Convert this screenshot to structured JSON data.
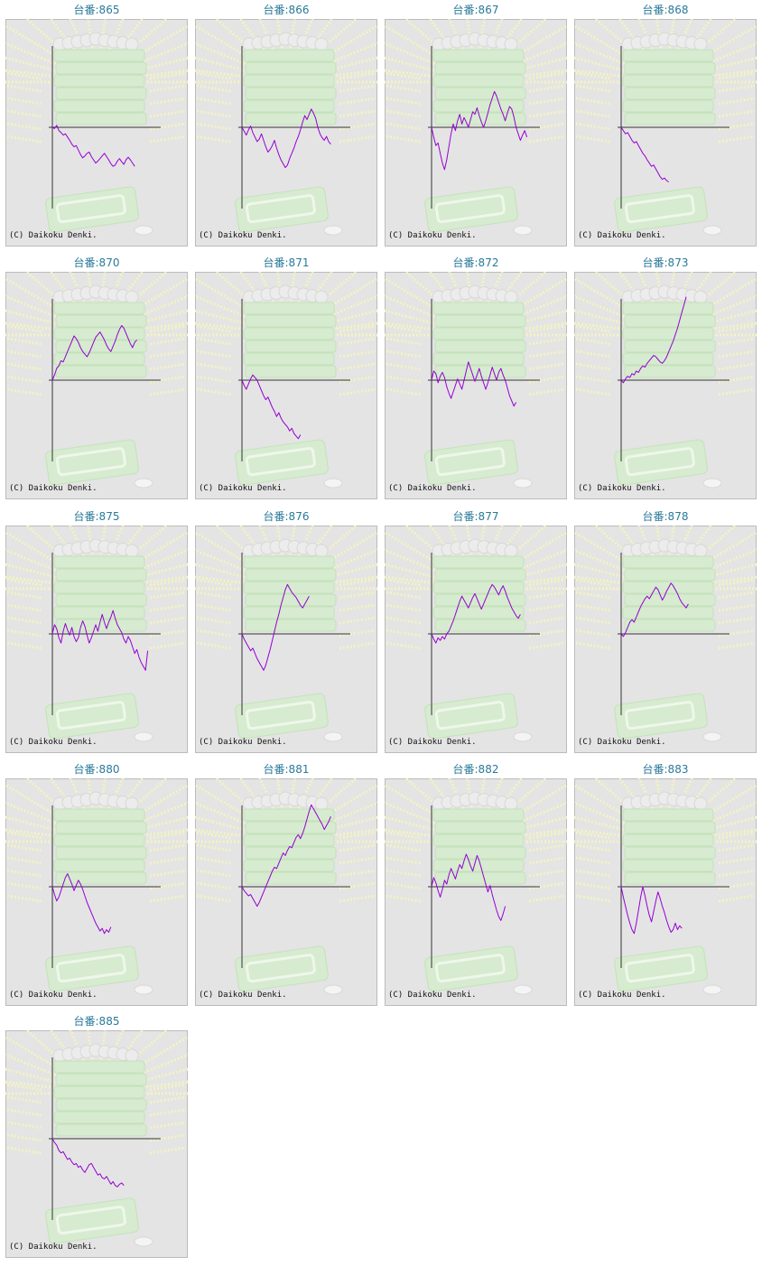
{
  "colors": {
    "line": "#9400d3",
    "axis": "#333333",
    "label": "#2a7a9a",
    "panel_bg": "#e4e4e4",
    "panel_border": "#bbbbbb"
  },
  "chart_data": [
    {
      "type": "line",
      "title": "台番:865",
      "copyright": "(C) Daikoku Denki.",
      "values": [
        0,
        -2,
        3,
        -5,
        -8,
        -12,
        -10,
        -15,
        -20,
        -26,
        -30,
        -28,
        -35,
        -42,
        -47,
        -44,
        -40,
        -38,
        -45,
        -50,
        -55,
        -52,
        -48,
        -44,
        -40,
        -45,
        -50,
        -56,
        -60,
        -58,
        -52,
        -48,
        -53,
        -57,
        -50,
        -46,
        -50,
        -55,
        -60
      ]
    },
    {
      "type": "line",
      "title": "台番:866",
      "copyright": "(C) Daikoku Denki.",
      "values": [
        0,
        -6,
        -12,
        -4,
        2,
        -8,
        -15,
        -22,
        -18,
        -10,
        -20,
        -30,
        -38,
        -34,
        -28,
        -20,
        -32,
        -42,
        -50,
        -56,
        -62,
        -58,
        -48,
        -40,
        -32,
        -22,
        -14,
        -4,
        8,
        18,
        12,
        20,
        28,
        22,
        14,
        0,
        -10,
        -16,
        -20,
        -14,
        -22,
        -26
      ]
    },
    {
      "type": "line",
      "title": "台番:867",
      "copyright": "(C) Daikoku Denki.",
      "values": [
        0,
        -15,
        -28,
        -24,
        -40,
        -55,
        -65,
        -50,
        -30,
        -10,
        5,
        -5,
        10,
        20,
        5,
        15,
        8,
        0,
        12,
        24,
        20,
        30,
        18,
        8,
        0,
        10,
        22,
        35,
        45,
        55,
        48,
        38,
        28,
        20,
        10,
        22,
        32,
        28,
        16,
        0,
        -10,
        -20,
        -12,
        -5,
        -15
      ]
    },
    {
      "type": "line",
      "title": "台番:868",
      "copyright": "(C) Daikoku Denki.",
      "values": [
        0,
        -5,
        -10,
        -8,
        -14,
        -20,
        -24,
        -22,
        -28,
        -34,
        -40,
        -44,
        -50,
        -55,
        -60,
        -58,
        -64,
        -70,
        -76,
        -80,
        -78,
        -82,
        -84
      ]
    },
    {
      "type": "line",
      "title": "台番:870",
      "copyright": "(C) Daikoku Denki.",
      "values": [
        0,
        8,
        18,
        22,
        30,
        28,
        36,
        44,
        52,
        60,
        68,
        64,
        58,
        50,
        44,
        40,
        36,
        42,
        50,
        58,
        66,
        70,
        74,
        68,
        62,
        54,
        48,
        44,
        52,
        60,
        70,
        78,
        84,
        80,
        72,
        64,
        56,
        50,
        58,
        62
      ]
    },
    {
      "type": "line",
      "title": "台番:871",
      "copyright": "(C) Daikoku Denki.",
      "values": [
        0,
        -8,
        -14,
        -6,
        2,
        8,
        4,
        0,
        -8,
        -16,
        -24,
        -30,
        -26,
        -34,
        -42,
        -48,
        -56,
        -50,
        -58,
        -64,
        -68,
        -72,
        -78,
        -74,
        -82,
        -86,
        -90,
        -84
      ]
    },
    {
      "type": "line",
      "title": "台番:872",
      "copyright": "(C) Daikoku Denki.",
      "values": [
        0,
        14,
        10,
        -4,
        6,
        12,
        4,
        -10,
        -20,
        -28,
        -18,
        -8,
        2,
        -6,
        -14,
        0,
        14,
        28,
        18,
        8,
        -2,
        8,
        18,
        6,
        -4,
        -14,
        -4,
        8,
        20,
        10,
        0,
        12,
        18,
        8,
        0,
        -12,
        -24,
        -32,
        -40,
        -34
      ]
    },
    {
      "type": "line",
      "title": "台番:873",
      "copyright": "(C) Daikoku Denki.",
      "values": [
        0,
        -4,
        2,
        6,
        4,
        10,
        8,
        14,
        12,
        18,
        22,
        20,
        26,
        30,
        34,
        38,
        36,
        32,
        28,
        26,
        30,
        36,
        44,
        52,
        60,
        70,
        80,
        92,
        104,
        116,
        128
      ]
    },
    {
      "type": "line",
      "title": "台番:875",
      "copyright": "(C) Daikoku Denki.",
      "values": [
        0,
        14,
        8,
        -6,
        -14,
        4,
        16,
        6,
        -2,
        10,
        -4,
        -12,
        -6,
        10,
        20,
        12,
        -2,
        -14,
        -6,
        4,
        14,
        4,
        18,
        30,
        18,
        8,
        18,
        26,
        36,
        24,
        14,
        8,
        2,
        -8,
        -14,
        -4,
        -10,
        -20,
        -30,
        -24,
        -36,
        -44,
        -50,
        -56,
        -26
      ]
    },
    {
      "type": "line",
      "title": "台番:876",
      "copyright": "(C) Daikoku Denki.",
      "values": [
        0,
        -8,
        -14,
        -20,
        -26,
        -22,
        -30,
        -38,
        -44,
        -50,
        -56,
        -48,
        -36,
        -24,
        -10,
        4,
        18,
        30,
        44,
        56,
        68,
        76,
        70,
        64,
        60,
        56,
        50,
        44,
        40,
        46,
        52,
        58
      ]
    },
    {
      "type": "line",
      "title": "台番:877",
      "copyright": "(C) Daikoku Denki.",
      "values": [
        0,
        -8,
        -14,
        -6,
        -10,
        -4,
        -8,
        0,
        4,
        12,
        20,
        30,
        40,
        50,
        58,
        52,
        46,
        40,
        48,
        56,
        62,
        54,
        46,
        38,
        46,
        54,
        62,
        70,
        76,
        72,
        66,
        60,
        68,
        74,
        66,
        56,
        48,
        40,
        34,
        28,
        24,
        30
      ]
    },
    {
      "type": "line",
      "title": "台番:878",
      "copyright": "(C) Daikoku Denki.",
      "values": [
        0,
        -4,
        2,
        10,
        18,
        22,
        18,
        26,
        34,
        42,
        48,
        54,
        58,
        54,
        60,
        66,
        72,
        68,
        60,
        52,
        58,
        66,
        72,
        78,
        74,
        68,
        62,
        54,
        48,
        44,
        40,
        46
      ]
    },
    {
      "type": "line",
      "title": "台番:880",
      "copyright": "(C) Daikoku Denki.",
      "values": [
        0,
        -12,
        -22,
        -16,
        -6,
        4,
        14,
        20,
        12,
        4,
        -6,
        2,
        10,
        4,
        -4,
        -14,
        -24,
        -32,
        -40,
        -48,
        -56,
        -62,
        -68,
        -64,
        -72,
        -66,
        -70,
        -62
      ]
    },
    {
      "type": "line",
      "title": "台番:881",
      "copyright": "(C) Daikoku Denki.",
      "values": [
        0,
        -6,
        -10,
        -14,
        -12,
        -18,
        -24,
        -30,
        -24,
        -16,
        -8,
        0,
        8,
        16,
        24,
        30,
        28,
        36,
        44,
        52,
        48,
        56,
        62,
        60,
        68,
        76,
        80,
        74,
        82,
        92,
        104,
        116,
        126,
        120,
        114,
        108,
        102,
        96,
        88,
        94,
        100,
        108
      ]
    },
    {
      "type": "line",
      "title": "台番:882",
      "copyright": "(C) Daikoku Denki.",
      "values": [
        0,
        14,
        6,
        -6,
        -16,
        -4,
        10,
        4,
        18,
        28,
        20,
        12,
        24,
        34,
        28,
        40,
        50,
        42,
        32,
        24,
        36,
        48,
        40,
        28,
        16,
        4,
        -8,
        2,
        -12,
        -24,
        -36,
        -46,
        -52,
        -42,
        -30
      ]
    },
    {
      "type": "line",
      "title": "台番:883",
      "copyright": "(C) Daikoku Denki.",
      "values": [
        0,
        -16,
        -30,
        -44,
        -56,
        -66,
        -72,
        -56,
        -36,
        -16,
        0,
        -14,
        -30,
        -44,
        -54,
        -38,
        -22,
        -8,
        -18,
        -30,
        -40,
        -52,
        -62,
        -70,
        -66,
        -56,
        -66,
        -60,
        -64
      ]
    },
    {
      "type": "line",
      "title": "台番:885",
      "copyright": "(C) Daikoku Denki.",
      "values": [
        0,
        -6,
        -10,
        -18,
        -22,
        -20,
        -26,
        -32,
        -30,
        -36,
        -40,
        -38,
        -44,
        -42,
        -48,
        -52,
        -46,
        -40,
        -38,
        -44,
        -50,
        -56,
        -54,
        -60,
        -62,
        -58,
        -64,
        -70,
        -66,
        -72,
        -74,
        -70,
        -68,
        -72
      ]
    }
  ]
}
